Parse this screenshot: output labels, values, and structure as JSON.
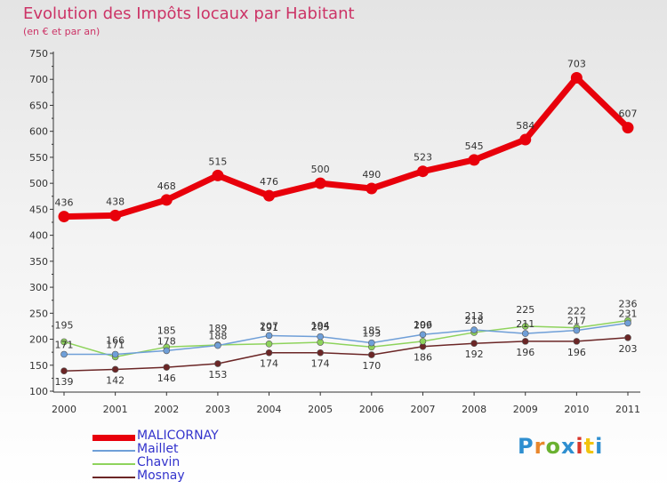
{
  "title": "Evolution des Impôts locaux par Habitant",
  "subtitle": "(en € et par an)",
  "logo": {
    "text": "Proxiti",
    "colors": [
      "#2f8fd0",
      "#e8872c",
      "#6ab130",
      "#2f8fd0",
      "#d9362b",
      "#f1c40f",
      "#2f8fd0"
    ]
  },
  "chart_data": {
    "type": "line",
    "title": "Evolution des Impôts locaux par Habitant",
    "subtitle": "(en € et par an)",
    "xlabel": "",
    "ylabel": "",
    "ylim": [
      100,
      750
    ],
    "yticks": [
      100,
      150,
      200,
      250,
      300,
      350,
      400,
      450,
      500,
      550,
      600,
      650,
      700,
      750
    ],
    "grid": false,
    "legend_position": "bottom-left",
    "categories": [
      "2000",
      "2001",
      "2002",
      "2003",
      "2004",
      "2005",
      "2006",
      "2007",
      "2008",
      "2009",
      "2010",
      "2011"
    ],
    "series": [
      {
        "name": "MALICORNAY",
        "color": "#e8000b",
        "values": [
          436,
          438,
          468,
          515,
          476,
          500,
          490,
          523,
          545,
          584,
          703,
          607
        ]
      },
      {
        "name": "Maillet",
        "color": "#6f9fd8",
        "values": [
          171,
          171,
          178,
          188,
          207,
          205,
          193,
          209,
          218,
          211,
          217,
          231
        ]
      },
      {
        "name": "Chavin",
        "color": "#8ed35c",
        "values": [
          195,
          166,
          185,
          189,
          191,
          194,
          185,
          196,
          213,
          225,
          222,
          236
        ]
      },
      {
        "name": "Mosnay",
        "color": "#6b2626",
        "values": [
          139,
          142,
          146,
          153,
          174,
          174,
          170,
          186,
          192,
          196,
          196,
          203
        ]
      }
    ]
  }
}
